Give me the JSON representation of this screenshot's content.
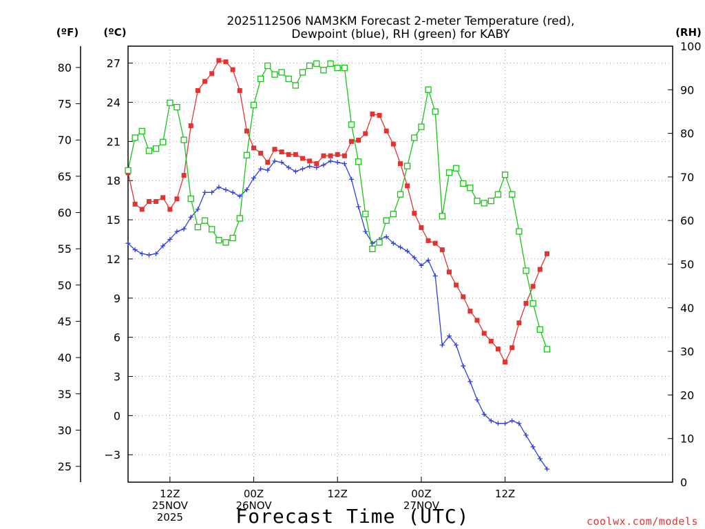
{
  "chart_data": {
    "type": "line",
    "title": [
      "2025112506 NAM3KM Forecast 2-meter Temperature (red),",
      "Dewpoint (blue), RH (green) for KABY"
    ],
    "xlabel": "Forecast Time (UTC)",
    "credit": "coolwx.com/models",
    "units": {
      "fahrenheit": "(ºF)",
      "celsius": "(ºC)",
      "rh": "(RH)"
    },
    "x_start_hour": 6,
    "xlim": [
      6,
      84
    ],
    "x_ticks": [
      {
        "hour": 12,
        "lines": [
          "12Z",
          "25NOV",
          "2025"
        ]
      },
      {
        "hour": 24,
        "lines": [
          "00Z",
          "26NOV"
        ]
      },
      {
        "hour": 36,
        "lines": [
          "12Z",
          ""
        ]
      },
      {
        "hour": 48,
        "lines": [
          "00Z",
          "27NOV"
        ]
      },
      {
        "hour": 60,
        "lines": [
          "12Z",
          ""
        ]
      }
    ],
    "ylim_c": [
      -5.1,
      28.3
    ],
    "celsius_ticks": [
      27,
      24,
      21,
      18,
      15,
      12,
      9,
      6,
      3,
      0,
      -3
    ],
    "celsius_tick_labels": [
      "27",
      "24",
      "21",
      "18",
      "15",
      "12",
      "9",
      "6",
      "3",
      "0",
      "−3"
    ],
    "fahrenheit_ticks": [
      80,
      75,
      70,
      65,
      60,
      55,
      50,
      45,
      40,
      35,
      30,
      25
    ],
    "ylim_rh": [
      0,
      100
    ],
    "rh_ticks": [
      0,
      10,
      20,
      30,
      40,
      50,
      60,
      70,
      80,
      90,
      100
    ],
    "series": [
      {
        "name": "Temperature",
        "units": "°C",
        "color": "#e4322e",
        "marker": "filled-square",
        "values": [
          18.6,
          16.2,
          15.8,
          16.4,
          16.4,
          16.7,
          15.8,
          16.6,
          18.4,
          22.2,
          24.9,
          25.6,
          26.2,
          27.2,
          27.1,
          26.5,
          24.9,
          21.8,
          20.5,
          20.1,
          19.4,
          20.4,
          20.2,
          20.0,
          20.0,
          19.7,
          19.5,
          19.3,
          19.9,
          19.9,
          20.0,
          19.9,
          21.0,
          21.1,
          21.6,
          23.1,
          23.0,
          21.8,
          20.8,
          19.3,
          17.6,
          15.5,
          14.4,
          13.4,
          13.2,
          12.7,
          11.0,
          10.0,
          9.1,
          8.0,
          7.3,
          6.3,
          5.7,
          5.1,
          4.1,
          5.2,
          7.1,
          8.6,
          9.9,
          11.2,
          12.4
        ]
      },
      {
        "name": "Dewpoint",
        "units": "°C",
        "color": "#2e3fe0",
        "marker": "plus",
        "values": [
          13.2,
          12.7,
          12.4,
          12.3,
          12.4,
          13.0,
          13.5,
          14.1,
          14.3,
          15.2,
          15.8,
          17.1,
          17.1,
          17.5,
          17.3,
          17.1,
          16.8,
          17.3,
          18.2,
          18.9,
          18.8,
          19.5,
          19.4,
          19.0,
          18.7,
          18.9,
          19.1,
          19.0,
          19.2,
          19.5,
          19.4,
          19.3,
          18.1,
          16.0,
          14.1,
          13.2,
          13.5,
          13.7,
          13.2,
          12.9,
          12.6,
          12.1,
          11.5,
          11.9,
          10.7,
          5.4,
          6.1,
          5.4,
          3.8,
          2.6,
          1.2,
          0.1,
          -0.4,
          -0.6,
          -0.6,
          -0.4,
          -0.6,
          -1.5,
          -2.4,
          -3.3,
          -4.1
        ]
      },
      {
        "name": "RH",
        "units": "%",
        "color": "#16c416",
        "marker": "open-square",
        "values": [
          71.5,
          79,
          80.5,
          76,
          76.5,
          78,
          87,
          86,
          78.5,
          65,
          58.5,
          60,
          58,
          55.5,
          55,
          56,
          60.5,
          75,
          86.5,
          92.5,
          95.5,
          93.5,
          94,
          92.5,
          91,
          94,
          95.5,
          96,
          94.5,
          96,
          95,
          95,
          82,
          73.5,
          61.5,
          53.5,
          55,
          60,
          61.5,
          66,
          72.5,
          79,
          81.5,
          90,
          85,
          61,
          71,
          72,
          68.5,
          67.5,
          64.5,
          64,
          64.5,
          66,
          70.5,
          66,
          57.5,
          48.5,
          41,
          35,
          30.5
        ]
      }
    ]
  }
}
